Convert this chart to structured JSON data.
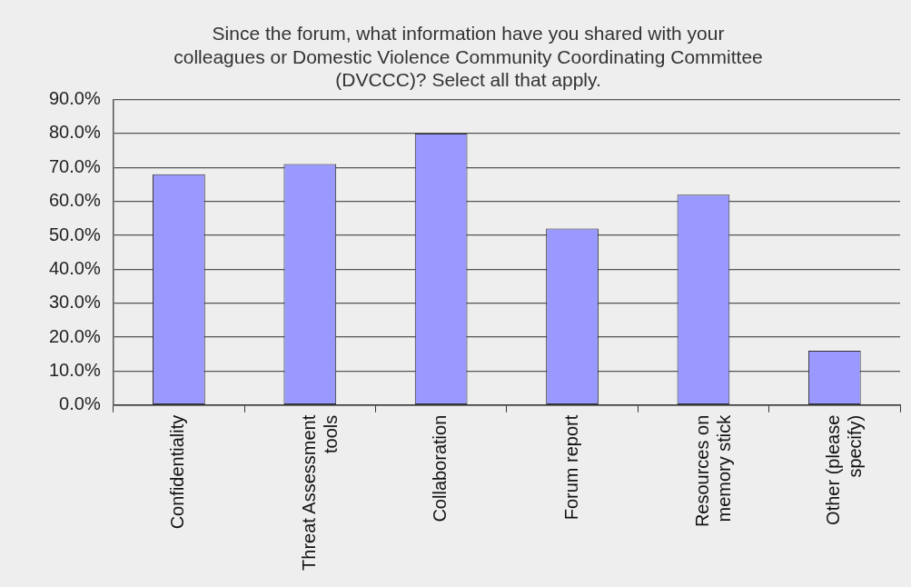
{
  "chart_data": {
    "type": "bar",
    "title": "Since the forum, what information have you shared with your colleagues or Domestic Violence Community Coordinating Committee (DVCCC)? Select all that apply.",
    "categories": [
      "Confidentiality",
      "Threat Assessment tools",
      "Collaboration",
      "Forum report",
      "Resources on memory stick",
      "Other (please specify)"
    ],
    "values": [
      68,
      71,
      80,
      52,
      62,
      16
    ],
    "color": "#9999ff",
    "ylim": [
      0,
      90
    ],
    "yticks": [
      {
        "value": 0,
        "label": "0.0%"
      },
      {
        "value": 10,
        "label": "10.0%"
      },
      {
        "value": 20,
        "label": "20.0%"
      },
      {
        "value": 30,
        "label": "30.0%"
      },
      {
        "value": 40,
        "label": "40.0%"
      },
      {
        "value": 50,
        "label": "50.0%"
      },
      {
        "value": 60,
        "label": "60.0%"
      },
      {
        "value": 70,
        "label": "70.0%"
      },
      {
        "value": 80,
        "label": "80.0%"
      },
      {
        "value": 90,
        "label": "90.0%"
      }
    ],
    "grid": "y",
    "legend": false
  }
}
